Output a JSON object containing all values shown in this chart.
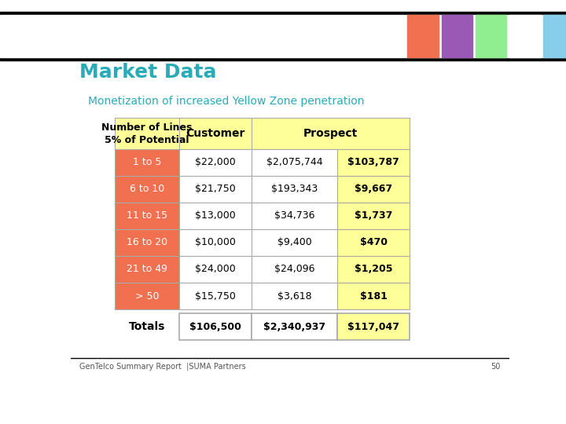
{
  "title": "Market Data",
  "subtitle": "Monetization of increased Yellow Zone penetration",
  "rows": [
    {
      "label": "1 to 5",
      "col2": "$22,000",
      "col3": "$2,075,744",
      "col4": "$103,787"
    },
    {
      "label": "6 to 10",
      "col2": "$21,750",
      "col3": "$193,343",
      "col4": "$9,667"
    },
    {
      "label": "11 to 15",
      "col2": "$13,000",
      "col3": "$34,736",
      "col4": "$1,737"
    },
    {
      "label": "16 to 20",
      "col2": "$10,000",
      "col3": "$9,400",
      "col4": "$470"
    },
    {
      "label": "21 to 49",
      "col2": "$24,000",
      "col3": "$24,096",
      "col4": "$1,205"
    },
    {
      "label": "> 50",
      "col2": "$15,750",
      "col3": "$3,618",
      "col4": "$181"
    }
  ],
  "totals": {
    "label": "Totals",
    "col2": "$106,500",
    "col3": "$2,340,937",
    "col4": "$117,047"
  },
  "header_bg": "#FFFF99",
  "label_bg": "#F07050",
  "label_text_color": "#FFFFFF",
  "cell_bg": "#FFFFFF",
  "highlight_bg": "#FFFF99",
  "totals_cell_bg": "#FFFFFF",
  "totals_highlight_bg": "#FFFF99",
  "title_color": "#29ABB8",
  "subtitle_color": "#29ABB8",
  "footer_text": "GenTelco Summary Report  |SUMA Partners",
  "footer_page": "50",
  "header_bar_colors": [
    "#F07050",
    "#9B59B6",
    "#90EE90",
    "#FFFFFF",
    "#87CEEB"
  ],
  "bg_color": "#FFFFFF"
}
